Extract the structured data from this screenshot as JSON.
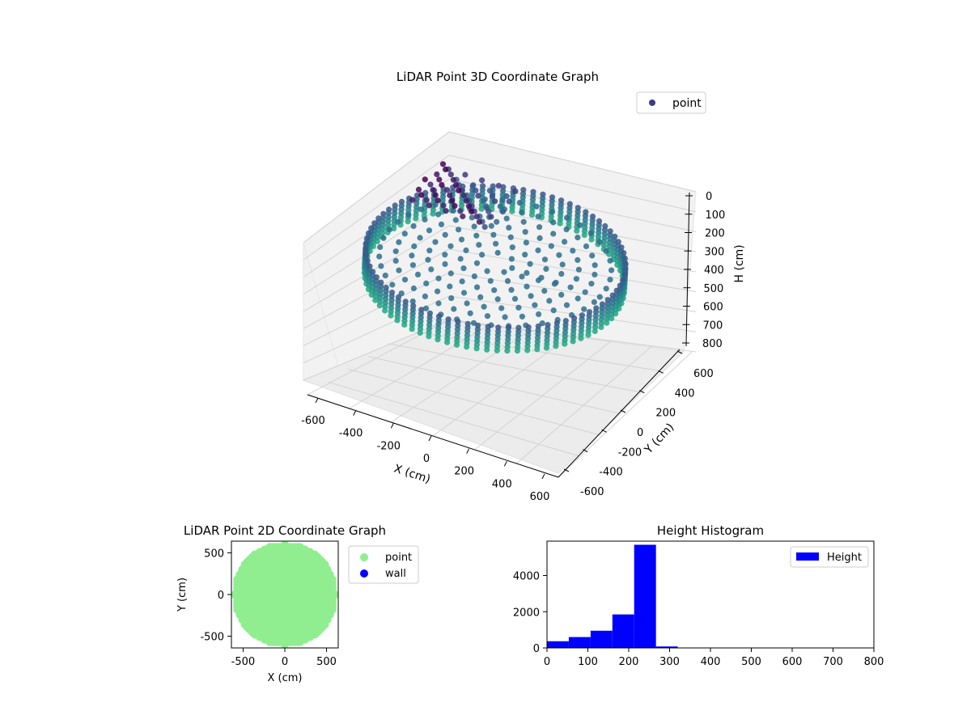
{
  "chart_data": [
    {
      "type": "scatter",
      "projection": "3d",
      "title": "LiDAR Point 3D Coordinate Graph",
      "xlabel": "X (cm)",
      "ylabel": "Y (cm)",
      "zlabel": "H (cm)",
      "xlim": [
        -600,
        600
      ],
      "ylim": [
        -600,
        600
      ],
      "zlim": [
        0,
        800
      ],
      "z_inverted": true,
      "x_ticks": [
        "-600",
        "-400",
        "-200",
        "0",
        "200",
        "400",
        "600"
      ],
      "y_ticks": [
        "-600",
        "-400",
        "-200",
        "0",
        "200",
        "400",
        "600"
      ],
      "z_ticks": [
        "0",
        "100",
        "200",
        "300",
        "400",
        "500",
        "600",
        "700",
        "800"
      ],
      "legend": {
        "entries": [
          "point"
        ],
        "position": "top-right"
      },
      "colormap": "viridis",
      "grid": true,
      "series": [
        {
          "name": "point",
          "description_points": {
            "outer_ring_radius": 560,
            "h_range": [
              200,
              320
            ],
            "inner_disk_h": 230,
            "object_x_range": [
              -450,
              -100
            ],
            "object_y_range": [
              100,
              500
            ]
          }
        }
      ]
    },
    {
      "type": "scatter",
      "title": "LiDAR Point 2D Coordinate Graph",
      "xlabel": "X (cm)",
      "ylabel": "Y (cm)",
      "xlim": [
        -640,
        640
      ],
      "ylim": [
        -640,
        640
      ],
      "x_ticks": [
        "-500",
        "0",
        "500"
      ],
      "y_ticks": [
        "-500",
        "0",
        "500"
      ],
      "legend": {
        "entries": [
          "point",
          "wall"
        ],
        "colors": [
          "#90ee90",
          "#0000ff"
        ],
        "position": "outside-right"
      },
      "series": [
        {
          "name": "point",
          "color": "#90ee90",
          "region": "disk",
          "radius": 600
        },
        {
          "name": "wall",
          "color": "#0000ff",
          "values": []
        }
      ]
    },
    {
      "type": "bar",
      "subtype": "histogram",
      "title": "Height Histogram",
      "xlim": [
        0,
        800
      ],
      "ylim": [
        0,
        5900
      ],
      "x_ticks": [
        "0",
        "100",
        "200",
        "300",
        "400",
        "500",
        "600",
        "700",
        "800"
      ],
      "y_ticks": [
        "0",
        "2000",
        "4000"
      ],
      "legend": {
        "entries": [
          "Height"
        ],
        "colors": [
          "#0000ff"
        ],
        "position": "top-right"
      },
      "series": [
        {
          "name": "Height",
          "color": "#0000ff",
          "bin_edges": [
            0,
            53.3,
            106.7,
            160,
            213.3,
            266.7,
            320,
            373.3,
            426.7,
            480,
            533.3,
            586.7,
            640,
            693.3,
            746.7,
            800
          ],
          "values": [
            370,
            600,
            950,
            1850,
            5700,
            80,
            10,
            0,
            0,
            0,
            0,
            0,
            0,
            0,
            5
          ]
        }
      ]
    }
  ]
}
